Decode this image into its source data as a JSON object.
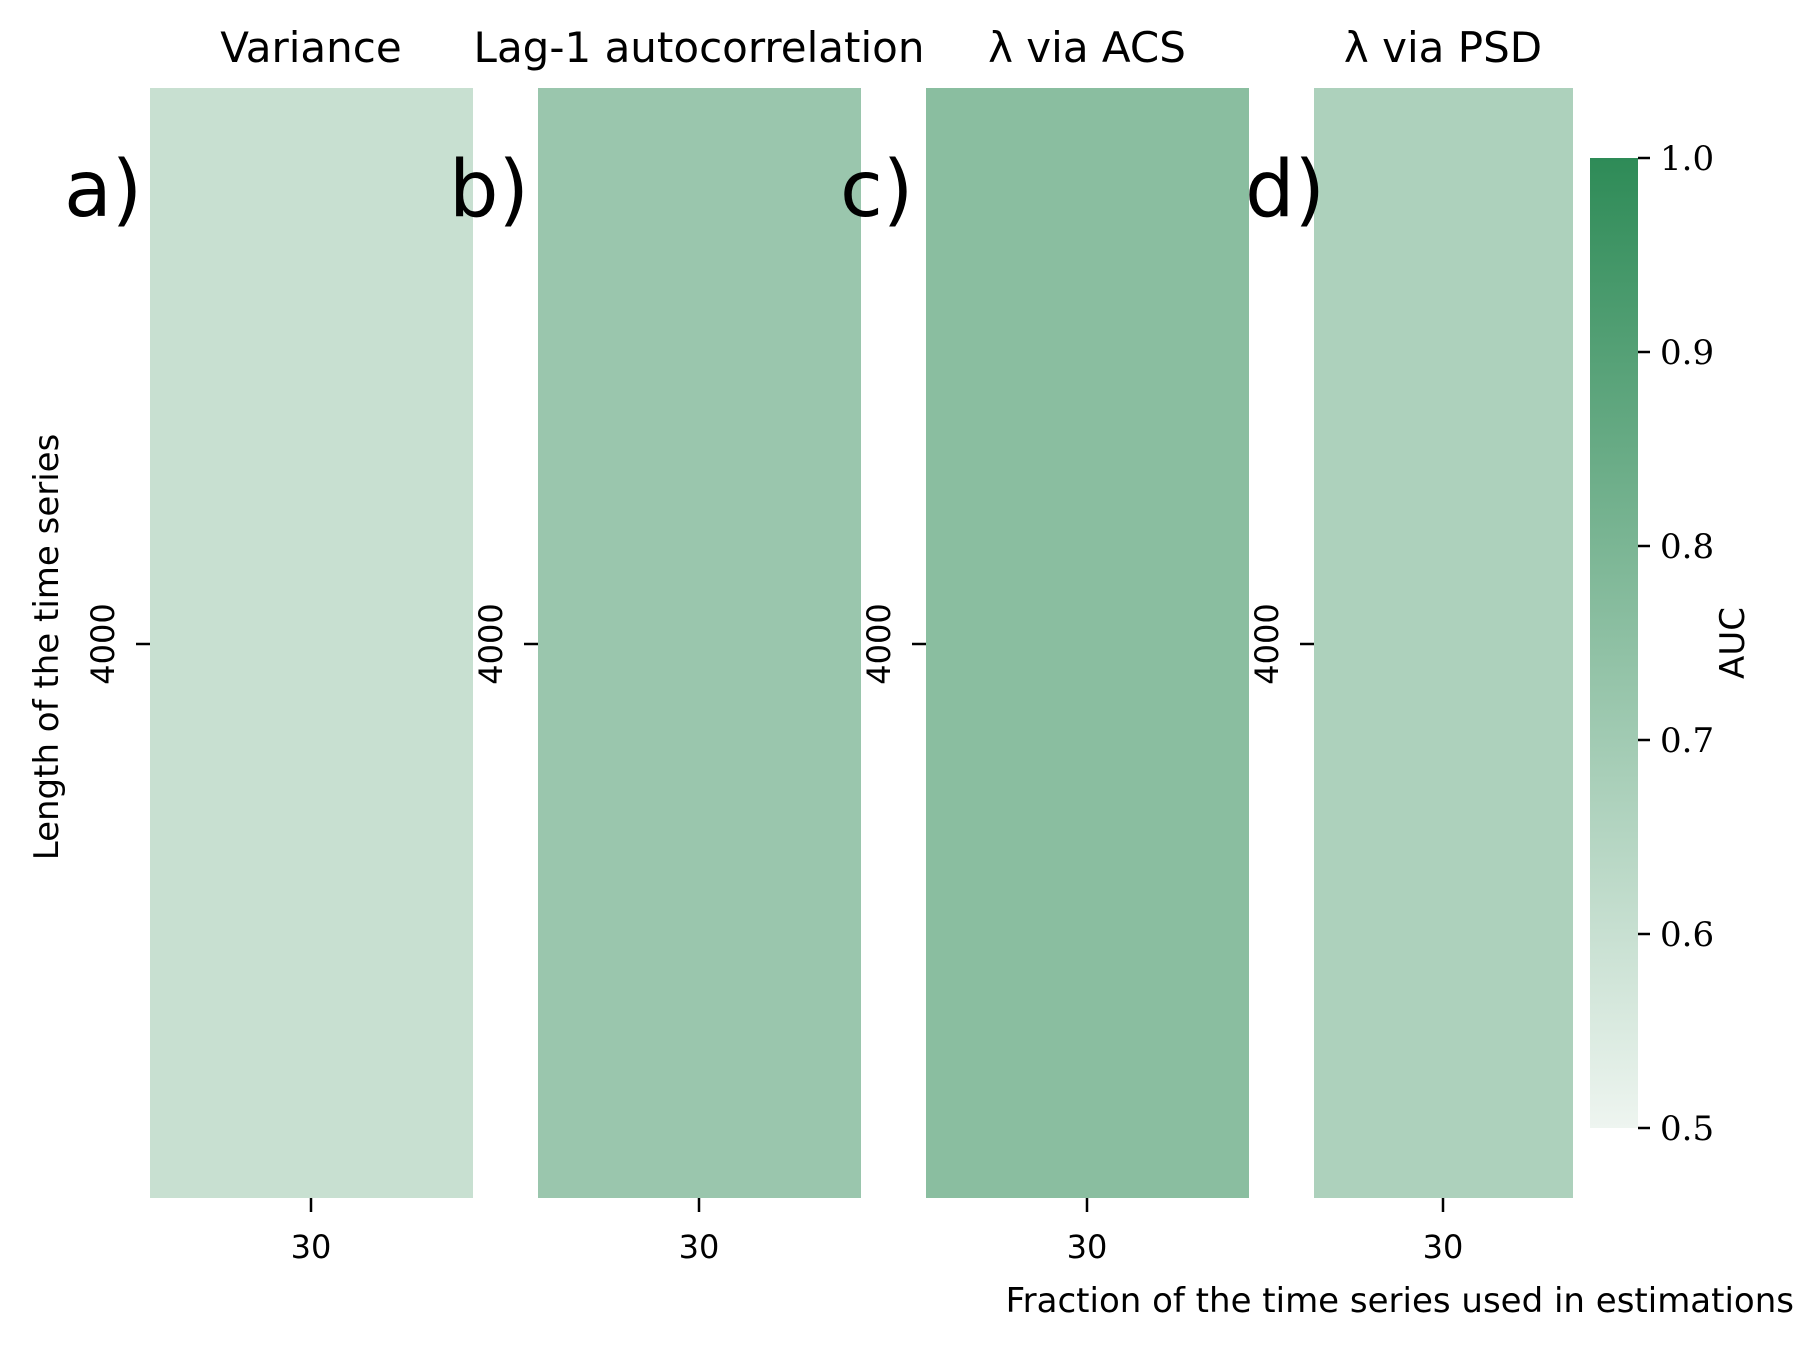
{
  "chart_data": {
    "type": "heatmap",
    "xlabel": "Fraction of the time series used in estimations",
    "ylabel": "Length of the time series",
    "panels": [
      {
        "letter": "a)",
        "title": "Variance",
        "x_categories": [
          "30"
        ],
        "y_categories": [
          "4000"
        ],
        "values": [
          [
            0.6
          ]
        ]
      },
      {
        "letter": "b)",
        "title": "Lag-1 autocorrelation",
        "x_categories": [
          "30"
        ],
        "y_categories": [
          "4000"
        ],
        "values": [
          [
            0.72
          ]
        ]
      },
      {
        "letter": "c)",
        "title": "λ via ACS",
        "x_categories": [
          "30"
        ],
        "y_categories": [
          "4000"
        ],
        "values": [
          [
            0.76
          ]
        ]
      },
      {
        "letter": "d)",
        "title": "λ via PSD",
        "x_categories": [
          "30"
        ],
        "y_categories": [
          "4000"
        ],
        "values": [
          [
            0.67
          ]
        ]
      }
    ],
    "colorbar": {
      "label": "AUC",
      "range": [
        0.5,
        1.0
      ],
      "ticks": [
        "0.5",
        "0.6",
        "0.7",
        "0.8",
        "0.9",
        "1.0"
      ],
      "color_low": "#eef5f0",
      "color_high": "#2e8b57"
    }
  }
}
